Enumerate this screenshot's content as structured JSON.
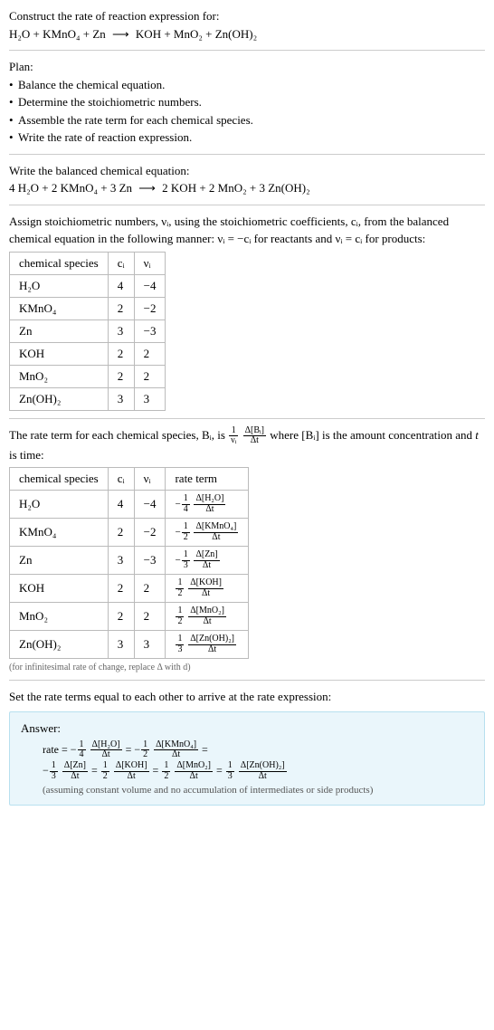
{
  "header": {
    "title": "Construct the rate of reaction expression for:",
    "equation_lhs": "H₂O + KMnO₄ + Zn",
    "arrow": "⟶",
    "equation_rhs": "KOH + MnO₂ + Zn(OH)₂"
  },
  "plan": {
    "title": "Plan:",
    "items": [
      "Balance the chemical equation.",
      "Determine the stoichiometric numbers.",
      "Assemble the rate term for each chemical species.",
      "Write the rate of reaction expression."
    ]
  },
  "balanced": {
    "title": "Write the balanced chemical equation:",
    "lhs": "4 H₂O + 2 KMnO₄ + 3 Zn",
    "arrow": "⟶",
    "rhs": "2 KOH + 2 MnO₂ + 3 Zn(OH)₂"
  },
  "stoich_intro_1": "Assign stoichiometric numbers, νᵢ, using the stoichiometric coefficients, cᵢ, from the balanced chemical equation in the following manner: νᵢ = −cᵢ for reactants and νᵢ = cᵢ for products:",
  "table1": {
    "headers": [
      "chemical species",
      "cᵢ",
      "νᵢ"
    ],
    "rows": [
      [
        "H₂O",
        "4",
        "−4"
      ],
      [
        "KMnO₄",
        "2",
        "−2"
      ],
      [
        "Zn",
        "3",
        "−3"
      ],
      [
        "KOH",
        "2",
        "2"
      ],
      [
        "MnO₂",
        "2",
        "2"
      ],
      [
        "Zn(OH)₂",
        "3",
        "3"
      ]
    ]
  },
  "rate_intro_a": "The rate term for each chemical species, Bᵢ, is ",
  "rate_frac_num": "1",
  "rate_frac_den": "νᵢ",
  "rate_frac2_num": "Δ[Bᵢ]",
  "rate_frac2_den": "Δt",
  "rate_intro_b": " where [Bᵢ] is the amount concentration and ",
  "rate_intro_c": " is time:",
  "t_label": "t",
  "table2": {
    "headers": [
      "chemical species",
      "cᵢ",
      "νᵢ",
      "rate term"
    ],
    "rows": [
      {
        "sp": "H₂O",
        "c": "4",
        "v": "−4",
        "sign": "−",
        "fn": "1",
        "fd": "4",
        "dn": "Δ[H₂O]",
        "dd": "Δt"
      },
      {
        "sp": "KMnO₄",
        "c": "2",
        "v": "−2",
        "sign": "−",
        "fn": "1",
        "fd": "2",
        "dn": "Δ[KMnO₄]",
        "dd": "Δt"
      },
      {
        "sp": "Zn",
        "c": "3",
        "v": "−3",
        "sign": "−",
        "fn": "1",
        "fd": "3",
        "dn": "Δ[Zn]",
        "dd": "Δt"
      },
      {
        "sp": "KOH",
        "c": "2",
        "v": "2",
        "sign": "",
        "fn": "1",
        "fd": "2",
        "dn": "Δ[KOH]",
        "dd": "Δt"
      },
      {
        "sp": "MnO₂",
        "c": "2",
        "v": "2",
        "sign": "",
        "fn": "1",
        "fd": "2",
        "dn": "Δ[MnO₂]",
        "dd": "Δt"
      },
      {
        "sp": "Zn(OH)₂",
        "c": "3",
        "v": "3",
        "sign": "",
        "fn": "1",
        "fd": "3",
        "dn": "Δ[Zn(OH)₂]",
        "dd": "Δt"
      }
    ]
  },
  "inf_note": "(for infinitesimal rate of change, replace Δ with d)",
  "set_equal": "Set the rate terms equal to each other to arrive at the rate expression:",
  "answer": {
    "label": "Answer:",
    "prefix": "rate = ",
    "terms": [
      {
        "sign": "−",
        "fn": "1",
        "fd": "4",
        "dn": "Δ[H₂O]",
        "dd": "Δt",
        "eq": " = "
      },
      {
        "sign": "−",
        "fn": "1",
        "fd": "2",
        "dn": "Δ[KMnO₄]",
        "dd": "Δt",
        "eq": " ="
      },
      {
        "sign": "−",
        "fn": "1",
        "fd": "3",
        "dn": "Δ[Zn]",
        "dd": "Δt",
        "eq": " = "
      },
      {
        "sign": "",
        "fn": "1",
        "fd": "2",
        "dn": "Δ[KOH]",
        "dd": "Δt",
        "eq": " = "
      },
      {
        "sign": "",
        "fn": "1",
        "fd": "2",
        "dn": "Δ[MnO₂]",
        "dd": "Δt",
        "eq": " = "
      },
      {
        "sign": "",
        "fn": "1",
        "fd": "3",
        "dn": "Δ[Zn(OH)₂]",
        "dd": "Δt",
        "eq": ""
      }
    ],
    "note": "(assuming constant volume and no accumulation of intermediates or side products)"
  },
  "bullet_char": "•"
}
